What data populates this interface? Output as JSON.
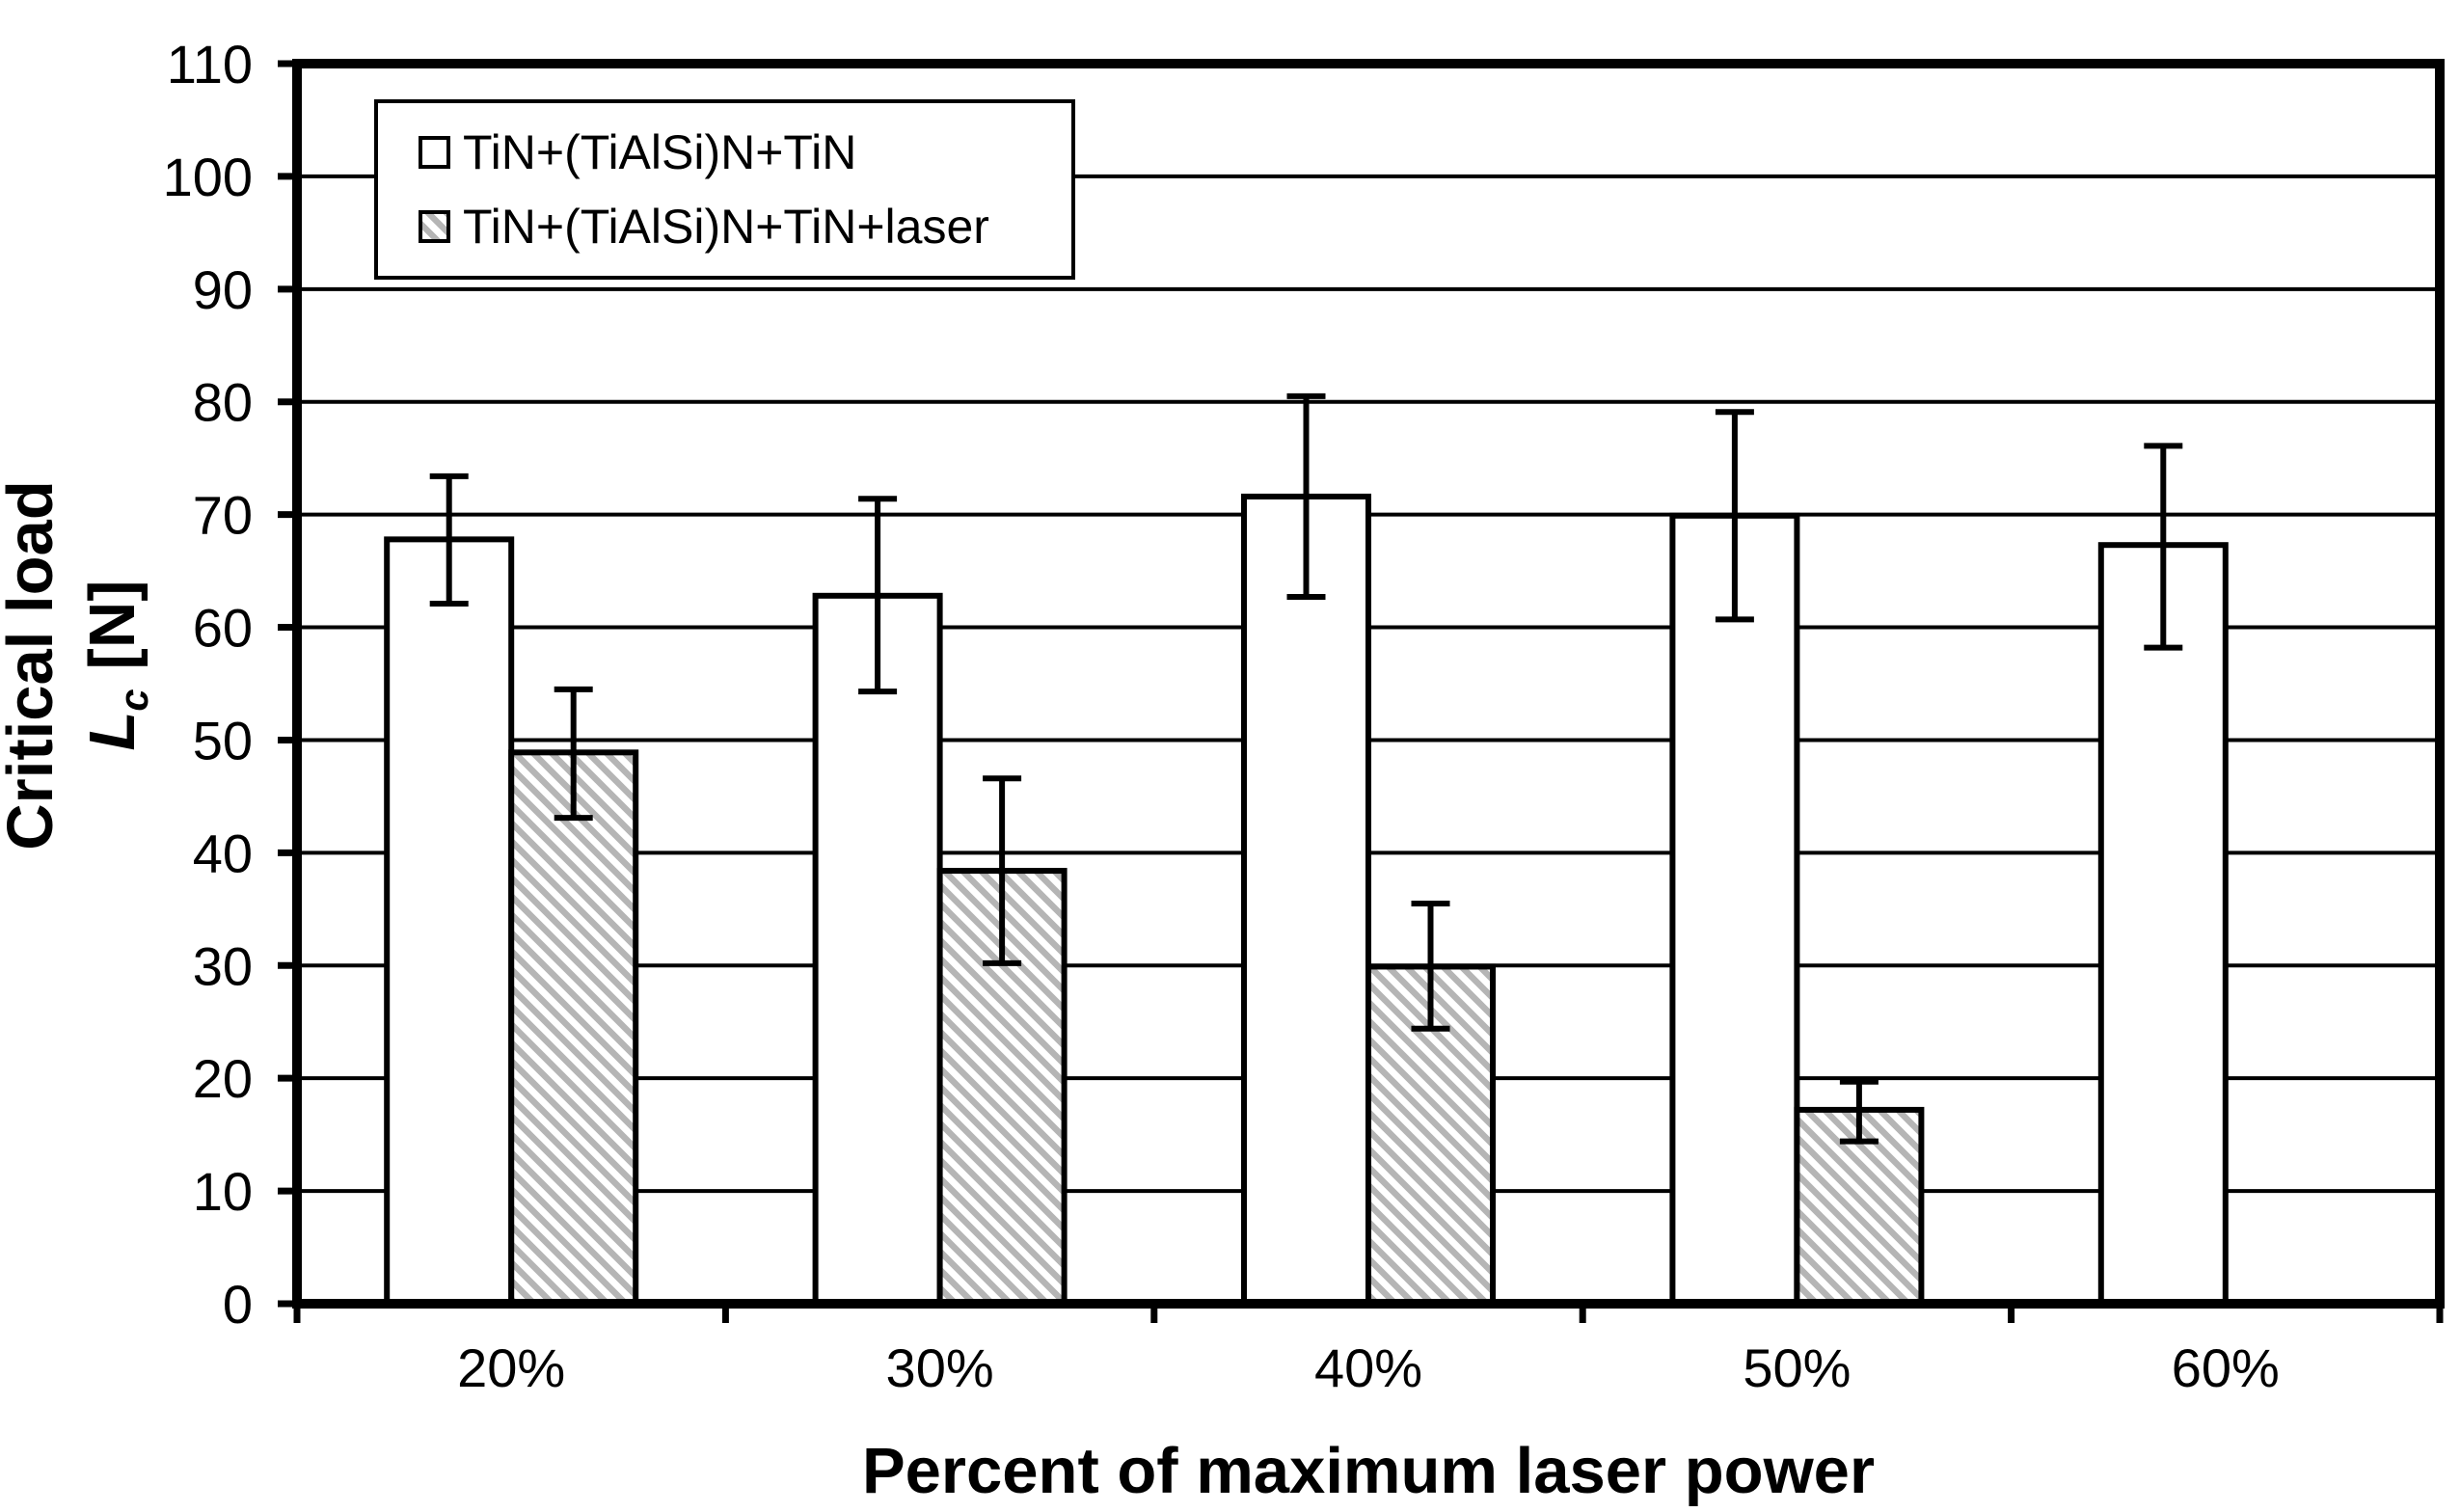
{
  "chart_data": {
    "type": "bar",
    "title": "",
    "xlabel": "Percent of maximum laser power",
    "ylabel_line1": "Critical load",
    "ylabel_symbol": "L",
    "ylabel_symbol_sub": "c",
    "ylabel_unit": "[N]",
    "categories": [
      "20%",
      "30%",
      "40%",
      "50%",
      "60%"
    ],
    "ylim": [
      0,
      110
    ],
    "y_ticks": [
      0,
      10,
      20,
      30,
      40,
      50,
      60,
      70,
      80,
      90,
      100,
      110
    ],
    "grid": "horizontal-gridlines",
    "legend_position": "top-left-inside",
    "series": [
      {
        "name": "TiN+(TiAlSi)N+TiN",
        "style": "white",
        "values": [
          67.8,
          62.8,
          71.6,
          69.9,
          67.3
        ],
        "error_plus": [
          5.6,
          8.6,
          8.9,
          9.2,
          8.8
        ],
        "error_minus": [
          5.7,
          8.5,
          8.9,
          9.2,
          9.1
        ]
      },
      {
        "name": "TiN+(TiAlSi)N+TiN+laser",
        "style": "hatched",
        "values": [
          48.9,
          38.4,
          29.9,
          17.2,
          null
        ],
        "error_plus": [
          5.6,
          8.2,
          5.6,
          2.5,
          null
        ],
        "error_minus": [
          5.8,
          8.2,
          5.5,
          2.8,
          null
        ]
      }
    ],
    "colors": {
      "background": "#ffffff",
      "axis": "#000000",
      "grid": "#000000",
      "text": "#000000",
      "bar_fill": "#ffffff",
      "bar_border": "#000000",
      "hatch_stripe": "#b5b5b5"
    }
  }
}
